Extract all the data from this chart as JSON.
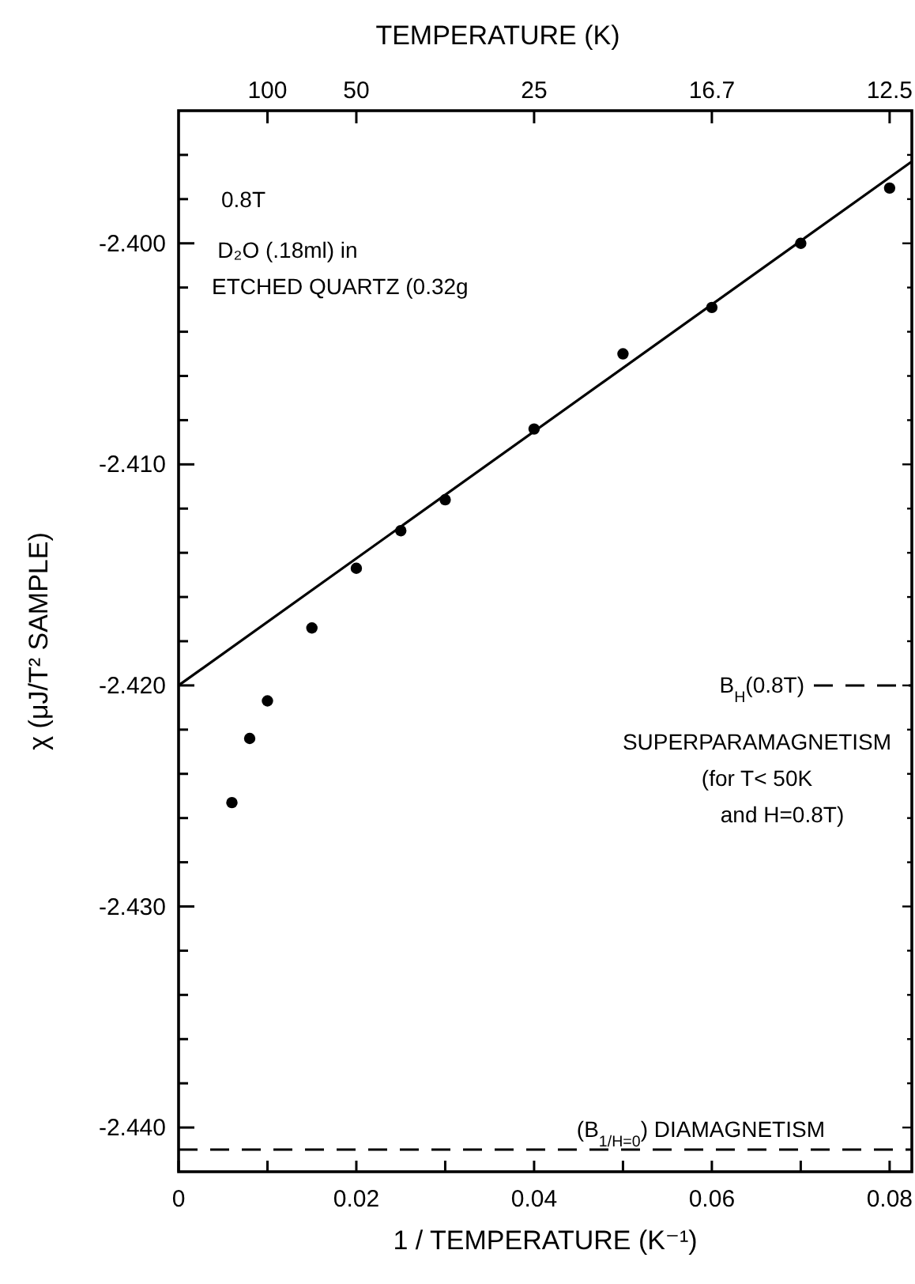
{
  "chart_data": {
    "type": "scatter",
    "xlabel": "1 / TEMPERATURE (K⁻¹)",
    "x2label": "TEMPERATURE (K)",
    "ylabel": "χ (μJ/T² SAMPLE)",
    "xlim": [
      0,
      0.0825
    ],
    "xticks": [
      0,
      {
        "value": 0.01,
        "label": null
      },
      0.02,
      {
        "value": 0.03,
        "label": null
      },
      0.04,
      {
        "value": 0.05,
        "label": null
      },
      0.06,
      {
        "value": 0.07,
        "label": null
      },
      0.08
    ],
    "ylim": [
      -2.442,
      -2.394
    ],
    "yticks": [
      {
        "value": -2.44,
        "label": "-2.440"
      },
      {
        "value": -2.438,
        "label": null
      },
      {
        "value": -2.436,
        "label": null
      },
      {
        "value": -2.434,
        "label": null
      },
      {
        "value": -2.432,
        "label": null
      },
      {
        "value": -2.43,
        "label": "-2.430"
      },
      {
        "value": -2.428,
        "label": null
      },
      {
        "value": -2.426,
        "label": null
      },
      {
        "value": -2.424,
        "label": null
      },
      {
        "value": -2.422,
        "label": null
      },
      {
        "value": -2.42,
        "label": "-2.420"
      },
      {
        "value": -2.418,
        "label": null
      },
      {
        "value": -2.416,
        "label": null
      },
      {
        "value": -2.414,
        "label": null
      },
      {
        "value": -2.412,
        "label": null
      },
      {
        "value": -2.41,
        "label": "-2.410"
      },
      {
        "value": -2.408,
        "label": null
      },
      {
        "value": -2.406,
        "label": null
      },
      {
        "value": -2.404,
        "label": null
      },
      {
        "value": -2.402,
        "label": null
      },
      {
        "value": -2.4,
        "label": "-2.400"
      },
      {
        "value": -2.398,
        "label": null
      },
      {
        "value": -2.396,
        "label": null
      }
    ],
    "series": [
      {
        "type": "scatter",
        "color": "#000000",
        "marker": "circle",
        "x": [
          0.006,
          0.008,
          0.01,
          0.015,
          0.02,
          0.025,
          0.03,
          0.04,
          0.05,
          0.06,
          0.07,
          0.08
        ],
        "values": [
          -2.4253,
          -2.4224,
          -2.4207,
          -2.4174,
          -2.4147,
          -2.413,
          -2.4116,
          -2.4084,
          -2.405,
          -2.4029,
          -2.4,
          -2.3975
        ]
      },
      {
        "type": "line",
        "color": "#000000",
        "marker": "none",
        "line_style": "solid",
        "x": [
          0,
          0.0825
        ],
        "values": [
          -2.42,
          -2.3963
        ]
      }
    ],
    "ref_lines": [
      {
        "axis": "y",
        "value": -2.441,
        "line_style": "dashed",
        "color": "#000000"
      },
      {
        "axis": "y",
        "value": -2.42,
        "line_style": "dashed",
        "color": "#000000"
      }
    ],
    "annotations": [
      "0.8T",
      "D₂O (.18ml) in",
      "ETCHED QUARTZ (0.32g",
      "SUPERPARAMAGNETISM",
      "(for T< 50K",
      "and H=0.8T)",
      "(B$_{1/H=0}$)  DIAMAGNETISM",
      "B$_{H}$(0.8T)",
      {
        "text": "100",
        "x": 0.01
      },
      {
        "text": "50",
        "x": 0.02
      },
      {
        "text": "25",
        "x": 0.04
      },
      {
        "text": "16.7",
        "x": 0.06
      },
      {
        "text": "12.5",
        "x": 0.08
      }
    ],
    "grid": false,
    "legend": false
  }
}
